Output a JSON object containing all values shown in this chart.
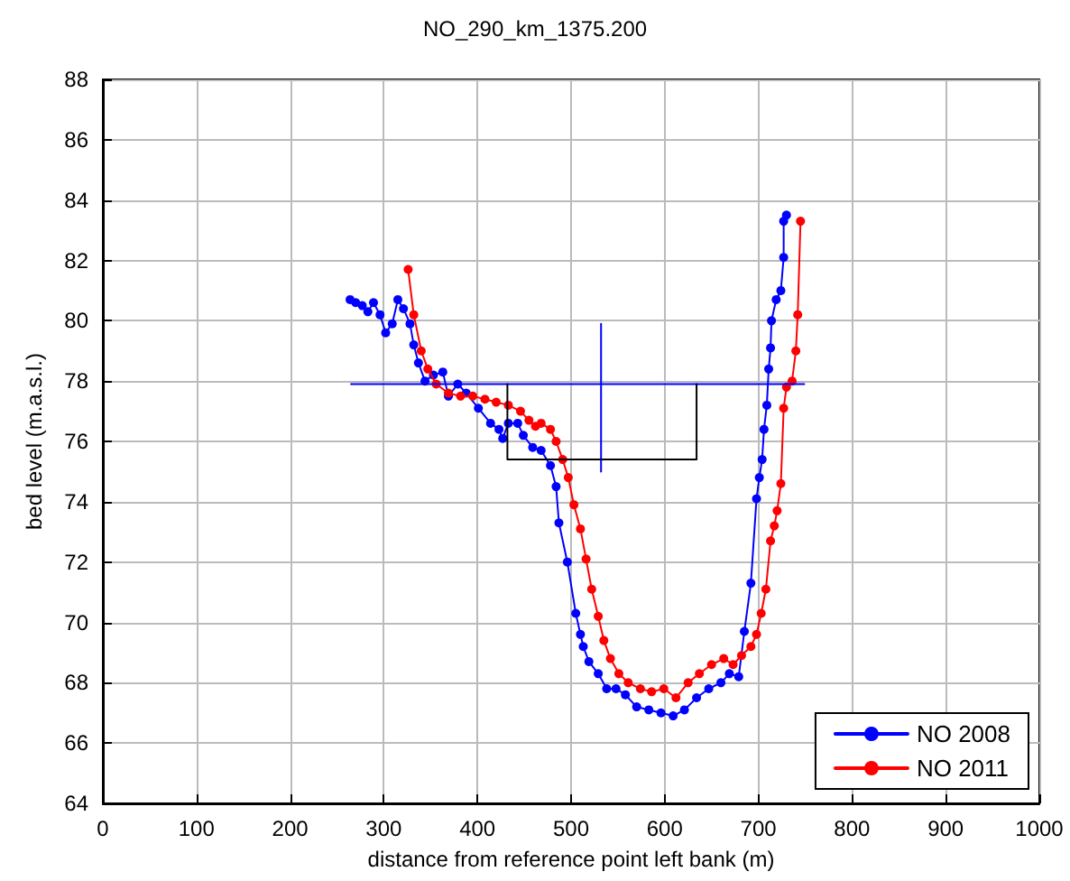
{
  "chart_data": {
    "type": "line",
    "title": "NO_290_km_1375.200",
    "xlabel": "distance from reference point left bank (m)",
    "ylabel": "bed level (m.a.s.l.)",
    "xlim": [
      0,
      1000
    ],
    "xticks": [
      0,
      100,
      200,
      300,
      400,
      500,
      600,
      700,
      800,
      900,
      1000
    ],
    "ylim": [
      64,
      88
    ],
    "yticks": [
      64,
      66,
      68,
      70,
      72,
      74,
      76,
      78,
      80,
      82,
      84,
      86,
      88
    ],
    "grid": true,
    "legend": "bottom right",
    "marker": "circle",
    "line_style": "solid",
    "series": [
      {
        "name": "NO 2008",
        "color": "#0000ff",
        "x": [
          264,
          270,
          277,
          283,
          289,
          296,
          302,
          309,
          315,
          321,
          328,
          332,
          337,
          344,
          353,
          363,
          369,
          379,
          388,
          401,
          414,
          423,
          427,
          433,
          443,
          449,
          459,
          468,
          478,
          484,
          487,
          496,
          505,
          510,
          513,
          519,
          529,
          538,
          548,
          558,
          570,
          583,
          596,
          609,
          621,
          634,
          647,
          660,
          669,
          679,
          685,
          692,
          698,
          701,
          704,
          706,
          709,
          711,
          713,
          714,
          719,
          724,
          727,
          727,
          730
        ],
        "values": [
          80.7,
          80.6,
          80.5,
          80.3,
          80.6,
          80.2,
          79.6,
          79.9,
          80.7,
          80.4,
          79.9,
          79.2,
          78.6,
          78.0,
          78.2,
          78.3,
          77.5,
          77.9,
          77.6,
          77.1,
          76.6,
          76.4,
          76.1,
          76.6,
          76.6,
          76.2,
          75.8,
          75.7,
          75.2,
          74.5,
          73.3,
          72.0,
          70.3,
          69.6,
          69.2,
          68.7,
          68.3,
          67.8,
          67.8,
          67.6,
          67.2,
          67.1,
          67.0,
          66.9,
          67.1,
          67.5,
          67.8,
          68.0,
          68.3,
          68.2,
          69.7,
          71.3,
          74.1,
          74.8,
          75.4,
          76.4,
          77.2,
          78.4,
          79.1,
          80.0,
          80.7,
          81.0,
          82.1,
          83.3,
          83.5
        ]
      },
      {
        "name": "NO 2011",
        "color": "#ff0000",
        "x": [
          326,
          332,
          340,
          347,
          356,
          369,
          382,
          395,
          408,
          420,
          433,
          446,
          455,
          462,
          468,
          478,
          484,
          491,
          497,
          503,
          510,
          516,
          522,
          529,
          535,
          542,
          551,
          561,
          574,
          586,
          599,
          612,
          625,
          637,
          650,
          663,
          673,
          682,
          692,
          698,
          703,
          708,
          713,
          717,
          720,
          724,
          727,
          730,
          736,
          740,
          742,
          745
        ],
        "values": [
          81.7,
          80.2,
          79.0,
          78.4,
          77.9,
          77.6,
          77.5,
          77.5,
          77.4,
          77.3,
          77.2,
          77.0,
          76.7,
          76.5,
          76.6,
          76.4,
          76.0,
          75.4,
          74.8,
          73.9,
          73.1,
          72.1,
          71.1,
          70.2,
          69.4,
          68.8,
          68.3,
          68.0,
          67.8,
          67.7,
          67.8,
          67.5,
          68.0,
          68.3,
          68.6,
          68.8,
          68.6,
          68.9,
          69.2,
          69.6,
          70.3,
          71.1,
          72.7,
          73.2,
          73.7,
          74.6,
          77.1,
          77.8,
          78.0,
          79.0,
          80.2,
          83.3
        ]
      },
      {
        "color": "#0000ff",
        "marker": "none",
        "x": [
          265,
          749
        ],
        "values": [
          77.9,
          77.9
        ]
      },
      {
        "color": "#0000ff",
        "marker": "none",
        "x": [
          532,
          532
        ],
        "values": [
          79.9,
          75.0
        ]
      },
      {
        "color": "#000000",
        "marker": "none",
        "x": [
          432,
          432,
          634,
          634
        ],
        "values": [
          77.9,
          75.4,
          75.4,
          77.9
        ]
      }
    ]
  }
}
